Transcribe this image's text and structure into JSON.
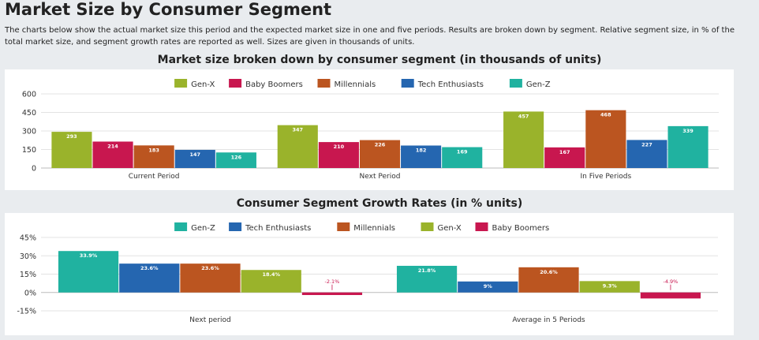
{
  "page": {
    "title": "Market Size by Consumer Segment",
    "description": "The charts below show the actual market size this period and the expected market size in one and five periods. Results are broken down by segment. Relative segment size, in % of the total market size, and segment growth rates are reported as well. Sizes are given in thousands of units."
  },
  "chart_data": [
    {
      "type": "bar",
      "title": "Market size broken down by consumer segment (in thousands of units)",
      "categories": [
        "Current Period",
        "Next Period",
        "In Five Periods"
      ],
      "series": [
        {
          "name": "Gen-X",
          "color": "#9ab32b",
          "values": [
            293,
            347,
            457
          ]
        },
        {
          "name": "Baby Boomers",
          "color": "#c8174f",
          "values": [
            214,
            210,
            167
          ]
        },
        {
          "name": "Millennials",
          "color": "#bb5520",
          "values": [
            183,
            226,
            468
          ]
        },
        {
          "name": "Tech Enthusiasts",
          "color": "#2566b0",
          "values": [
            147,
            182,
            227
          ]
        },
        {
          "name": "Gen-Z",
          "color": "#20b2a0",
          "values": [
            126,
            169,
            339
          ]
        }
      ],
      "ylim": [
        0,
        600
      ],
      "yticks": [
        0,
        150,
        300,
        450,
        600
      ],
      "legend": "top-center",
      "grid": true,
      "label_suffix": ""
    },
    {
      "type": "bar",
      "title": "Consumer Segment Growth Rates (in % units)",
      "categories": [
        "Next period",
        "Average in 5 Periods"
      ],
      "series": [
        {
          "name": "Gen-Z",
          "color": "#20b2a0",
          "values": [
            33.9,
            21.8
          ]
        },
        {
          "name": "Tech Enthusiasts",
          "color": "#2566b0",
          "values": [
            23.6,
            9
          ]
        },
        {
          "name": "Millennials",
          "color": "#bb5520",
          "values": [
            23.6,
            20.6
          ]
        },
        {
          "name": "Gen-X",
          "color": "#9ab32b",
          "values": [
            18.4,
            9.3
          ]
        },
        {
          "name": "Baby Boomers",
          "color": "#c8174f",
          "values": [
            -2.1,
            -4.9
          ]
        }
      ],
      "ylim": [
        -15,
        45
      ],
      "yticks": [
        -15,
        0,
        15,
        30,
        45
      ],
      "tick_suffix": "%",
      "label_suffix": "%",
      "legend": "top-center",
      "grid": true
    }
  ]
}
